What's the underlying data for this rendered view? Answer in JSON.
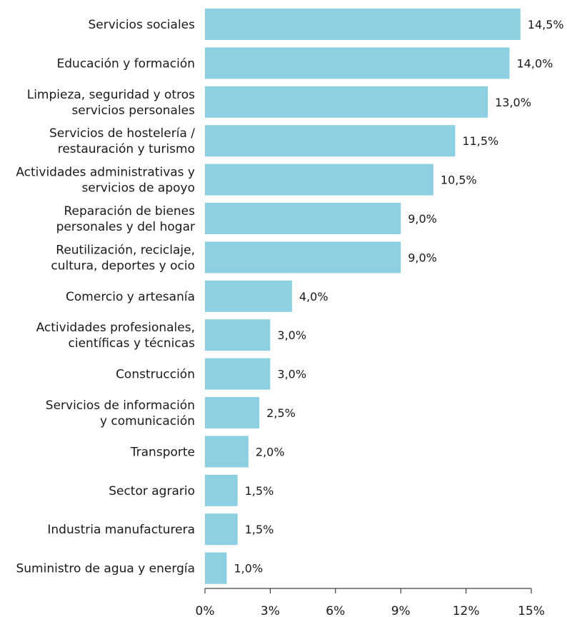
{
  "chart_data": {
    "type": "bar",
    "orientation": "horizontal",
    "title": "",
    "xlabel": "",
    "ylabel": "",
    "categories": [
      [
        "Servicios sociales"
      ],
      [
        "Educación y formación"
      ],
      [
        "Limpieza, seguridad y otros",
        "servicios personales"
      ],
      [
        "Servicios de hostelería /",
        "restauración y turismo"
      ],
      [
        "Actividades administrativas y",
        "servicios de apoyo"
      ],
      [
        "Reparación de bienes",
        "personales y del hogar"
      ],
      [
        "Reutilización, reciclaje,",
        "cultura, deportes y ocio"
      ],
      [
        "Comercio y artesanía"
      ],
      [
        "Actividades profesionales,",
        "científicas y técnicas"
      ],
      [
        "Construcción"
      ],
      [
        "Servicios de información",
        "y comunicación"
      ],
      [
        "Transporte"
      ],
      [
        "Sector agrario"
      ],
      [
        "Industria manufacturera"
      ],
      [
        "Suministro de agua y energía"
      ]
    ],
    "values": [
      14.5,
      14.0,
      13.0,
      11.5,
      10.5,
      9.0,
      9.0,
      4.0,
      3.0,
      3.0,
      2.5,
      2.0,
      1.5,
      1.5,
      1.0
    ],
    "value_labels": [
      "14,5%",
      "14,0%",
      "13,0%",
      "11,5%",
      "10,5%",
      "9,0%",
      "9,0%",
      "4,0%",
      "3,0%",
      "3,0%",
      "2,5%",
      "2,0%",
      "1,5%",
      "1,5%",
      "1,0%"
    ],
    "xlim": [
      0,
      15
    ],
    "xticks": [
      0,
      3,
      6,
      9,
      12,
      15
    ],
    "xtick_labels": [
      "0%",
      "3%",
      "6%",
      "9%",
      "12%",
      "15%"
    ],
    "bar_color": "#8ccfe0",
    "grid": false,
    "legend": "none"
  }
}
